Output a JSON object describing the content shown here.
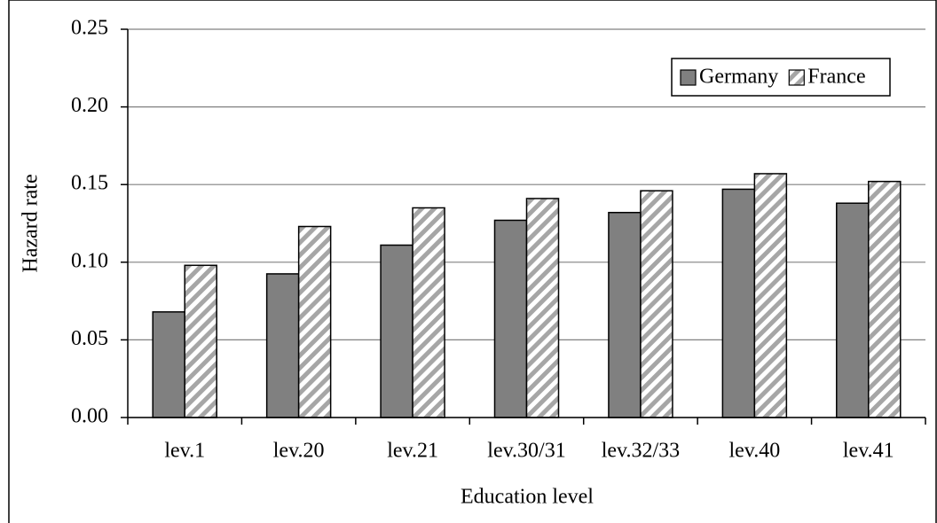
{
  "chart_data": {
    "type": "bar",
    "x_label": "Education level",
    "y_label": "Hazard rate",
    "categories": [
      "lev.1",
      "lev.20",
      "lev.21",
      "lev.30/31",
      "lev.32/33",
      "lev.40",
      "lev.41"
    ],
    "series": [
      {
        "name": "Germany",
        "color": "#808080",
        "hatch": false,
        "values": [
          0.068,
          0.0925,
          0.111,
          0.127,
          0.132,
          0.147,
          0.138
        ]
      },
      {
        "name": "France",
        "color": "#a6a6a6",
        "hatch": true,
        "values": [
          0.098,
          0.123,
          0.135,
          0.141,
          0.146,
          0.157,
          0.152
        ]
      }
    ],
    "ylim": [
      0,
      0.25
    ],
    "yticks": [
      {
        "value": 0,
        "label": "0.00"
      },
      0.05,
      {
        "value": 0.1,
        "label": "0.10"
      },
      0.15,
      {
        "value": 0.2,
        "label": "0.20"
      },
      0.25
    ],
    "grid": true,
    "legend": "top-right"
  }
}
